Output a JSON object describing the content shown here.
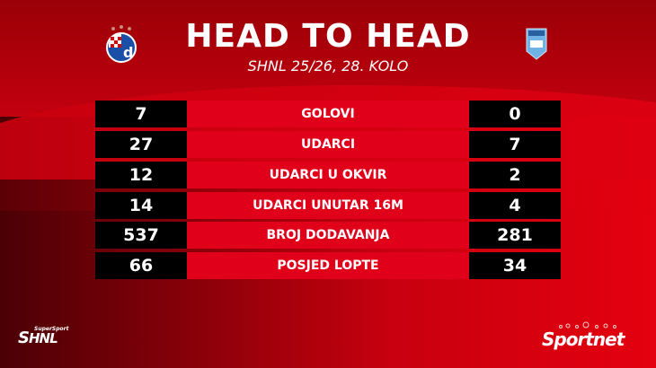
{
  "header": {
    "title": "HEAD TO HEAD",
    "subtitle": "SHNL 25/26, 28. KOLO"
  },
  "home_team": {
    "crest": "dinamo-zagreb-crest"
  },
  "away_team": {
    "crest": "osijek-crest"
  },
  "stats": [
    {
      "label": "GOLOVI",
      "home": "7",
      "away": "0"
    },
    {
      "label": "UDARCI",
      "home": "27",
      "away": "7"
    },
    {
      "label": "UDARCI U OKVIR",
      "home": "12",
      "away": "2"
    },
    {
      "label": "UDARCI UNUTAR 16M",
      "home": "14",
      "away": "4"
    },
    {
      "label": "BROJ DODAVANJA",
      "home": "537",
      "away": "281"
    },
    {
      "label": "POSJED LOPTE",
      "home": "66",
      "away": "34"
    }
  ],
  "footer": {
    "left_logo": "SuperSport SHNL",
    "right_logo": "Sportnet"
  },
  "colors": {
    "accent": "#e1001a",
    "box": "#000000"
  }
}
